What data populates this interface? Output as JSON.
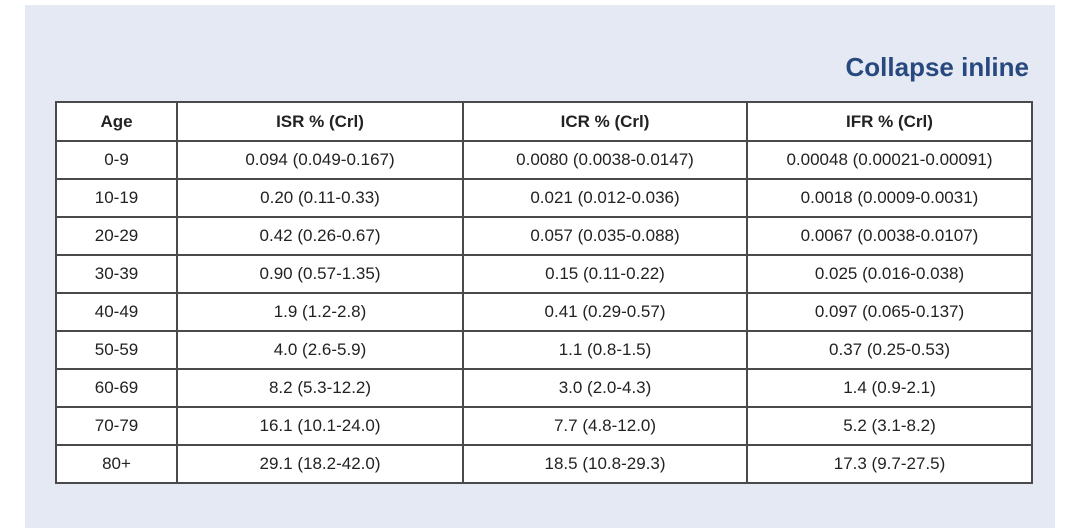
{
  "header": {
    "link": "Collapse inline"
  },
  "table": {
    "columns": [
      "Age",
      "ISR % (Crl)",
      "ICR % (Crl)",
      "IFR % (Crl)"
    ],
    "rows": [
      [
        "0-9",
        "0.094 (0.049-0.167)",
        "0.0080 (0.0038-0.0147)",
        "0.00048 (0.00021-0.00091)"
      ],
      [
        "10-19",
        "0.20 (0.11-0.33)",
        "0.021 (0.012-0.036)",
        "0.0018 (0.0009-0.0031)"
      ],
      [
        "20-29",
        "0.42 (0.26-0.67)",
        "0.057 (0.035-0.088)",
        "0.0067 (0.0038-0.0107)"
      ],
      [
        "30-39",
        "0.90 (0.57-1.35)",
        "0.15 (0.11-0.22)",
        "0.025 (0.016-0.038)"
      ],
      [
        "40-49",
        "1.9 (1.2-2.8)",
        "0.41 (0.29-0.57)",
        "0.097 (0.065-0.137)"
      ],
      [
        "50-59",
        "4.0 (2.6-5.9)",
        "1.1 (0.8-1.5)",
        "0.37 (0.25-0.53)"
      ],
      [
        "60-69",
        "8.2 (5.3-12.2)",
        "3.0 (2.0-4.3)",
        "1.4 (0.9-2.1)"
      ],
      [
        "70-79",
        "16.1 (10.1-24.0)",
        "7.7 (4.8-12.0)",
        "5.2 (3.1-8.2)"
      ],
      [
        "80+",
        "29.1 (18.2-42.0)",
        "18.5 (10.8-29.3)",
        "17.3 (9.7-27.5)"
      ]
    ]
  }
}
